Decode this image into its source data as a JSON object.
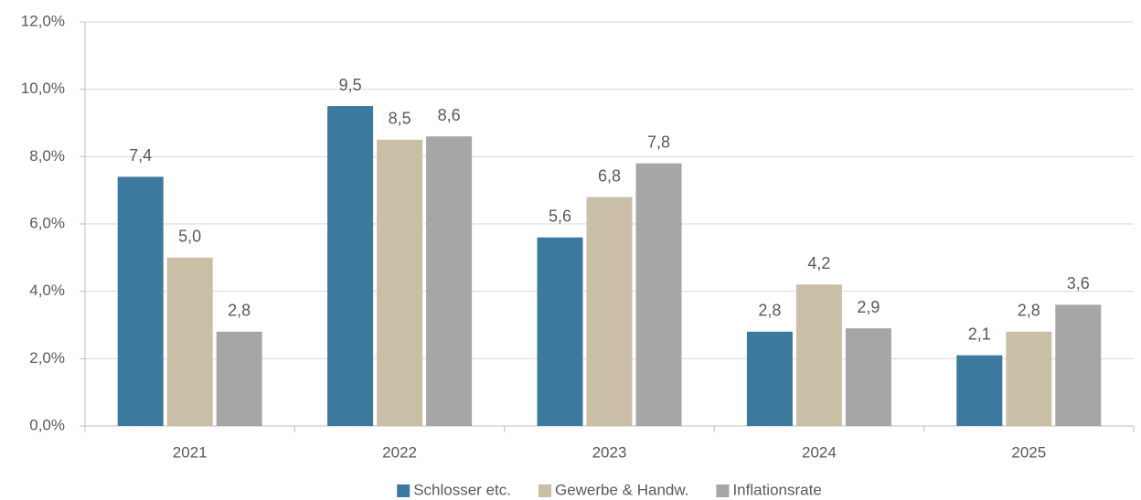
{
  "chart_data": {
    "type": "bar",
    "categories": [
      "2021",
      "2022",
      "2023",
      "2024",
      "2025"
    ],
    "series": [
      {
        "name": "Schlosser etc.",
        "color": "#3c799f",
        "values": [
          7.4,
          9.5,
          5.6,
          2.8,
          2.1
        ],
        "value_labels": [
          "7,4",
          "9,5",
          "5,6",
          "2,8",
          "2,1"
        ]
      },
      {
        "name": "Gewerbe & Handw.",
        "color": "#c9bfa6",
        "values": [
          5.0,
          8.5,
          6.8,
          4.2,
          2.8
        ],
        "value_labels": [
          "5,0",
          "8,5",
          "6,8",
          "4,2",
          "2,8"
        ]
      },
      {
        "name": "Inflationsrate",
        "color": "#a6a6a6",
        "values": [
          2.8,
          8.6,
          7.8,
          2.9,
          3.6
        ],
        "value_labels": [
          "2,8",
          "8,6",
          "7,8",
          "2,9",
          "3,6"
        ]
      }
    ],
    "ylim": [
      0,
      12
    ],
    "yticks": [
      {
        "value": 0,
        "label": "0,0%"
      },
      {
        "value": 2,
        "label": "2,0%"
      },
      {
        "value": 4,
        "label": "4,0%"
      },
      {
        "value": 6,
        "label": "6,0%"
      },
      {
        "value": 8,
        "label": "8,0%"
      },
      {
        "value": 10,
        "label": "10,0%"
      },
      {
        "value": 12,
        "label": "12,0%"
      }
    ],
    "grid": true,
    "legend": "bottom"
  }
}
